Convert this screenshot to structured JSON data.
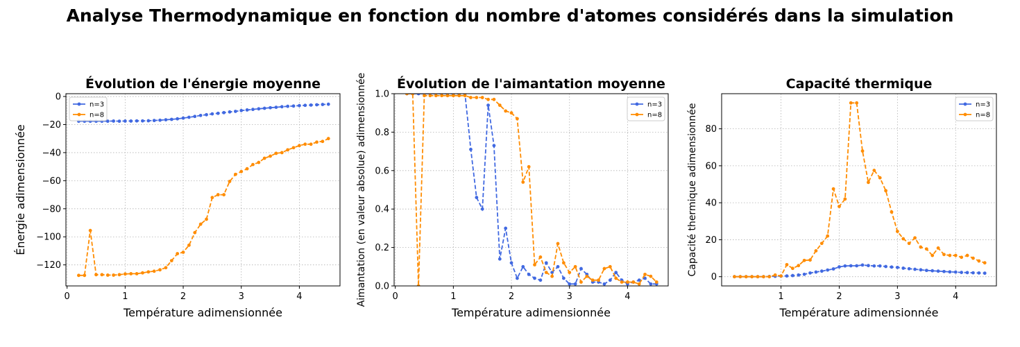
{
  "suptitle": "Analyse Thermodynamique en fonction du nombre d'atomes considérés dans la simulation",
  "colors": {
    "n3": "#4169e1",
    "n8": "#ff8c00"
  },
  "chart_data": [
    {
      "type": "line",
      "title": "Évolution de l'énergie moyenne",
      "xlabel": "Température adimensionnée",
      "ylabel": "Énergie adimensionnée",
      "xlim": [
        -0.02,
        4.7
      ],
      "ylim": [
        -135,
        2
      ],
      "xticks": [
        "0",
        "1",
        "2",
        "3",
        "4"
      ],
      "yticks": [
        "0",
        "−20",
        "−40",
        "−60",
        "−80",
        "−100",
        "−120"
      ],
      "legend": "upper-left",
      "grid": true,
      "x": [
        0.2,
        0.3,
        0.4,
        0.5,
        0.6,
        0.7,
        0.8,
        0.9,
        1.0,
        1.1,
        1.2,
        1.3,
        1.4,
        1.5,
        1.6,
        1.7,
        1.8,
        1.9,
        2.0,
        2.1,
        2.2,
        2.3,
        2.4,
        2.5,
        2.6,
        2.7,
        2.8,
        2.9,
        3.0,
        3.1,
        3.2,
        3.3,
        3.4,
        3.5,
        3.6,
        3.7,
        3.8,
        3.9,
        4.0,
        4.1,
        4.2,
        4.3,
        4.4,
        4.5
      ],
      "series": [
        {
          "name": "n=3",
          "values": [
            -17.6,
            -17.6,
            -17.6,
            -17.6,
            -17.6,
            -17.6,
            -17.5,
            -17.6,
            -17.5,
            -17.5,
            -17.4,
            -17.4,
            -17.3,
            -17.1,
            -16.9,
            -16.6,
            -16.3,
            -15.9,
            -15.4,
            -14.8,
            -14.2,
            -13.5,
            -13.0,
            -12.4,
            -12.0,
            -11.5,
            -11.0,
            -10.6,
            -10.0,
            -9.6,
            -9.2,
            -8.8,
            -8.4,
            -8.0,
            -7.7,
            -7.3,
            -7.0,
            -6.8,
            -6.5,
            -6.3,
            -6.1,
            -5.9,
            -5.7,
            -5.5
          ]
        },
        {
          "name": "n=8",
          "values": [
            -127.5,
            -127.5,
            -95.5,
            -127.0,
            -127.0,
            -127.3,
            -127.3,
            -127.0,
            -126.5,
            -126.3,
            -126.3,
            -125.7,
            -125.0,
            -124.5,
            -123.5,
            -122.0,
            -117.0,
            -112.0,
            -111.0,
            -106.0,
            -97.0,
            -91.0,
            -87.5,
            -72.0,
            -70.0,
            -70.0,
            -60.5,
            -55.5,
            -53.5,
            -51.5,
            -48.5,
            -47.0,
            -44.0,
            -42.5,
            -40.5,
            -40.0,
            -38.0,
            -36.5,
            -35.0,
            -34.0,
            -34.0,
            -32.5,
            -32.0,
            -30.0
          ]
        }
      ]
    },
    {
      "type": "line",
      "title": "Évolution de l'aimantation moyenne",
      "xlabel": "Température adimensionnée",
      "ylabel": "Aimantation (en valeur absolue) adimensionnée",
      "xlim": [
        -0.02,
        4.7
      ],
      "ylim": [
        0,
        1.0
      ],
      "xticks": [
        "0",
        "1",
        "2",
        "3",
        "4"
      ],
      "yticks": [
        "0.0",
        "0.2",
        "0.4",
        "0.6",
        "0.8",
        "1.0"
      ],
      "legend": "upper-right",
      "grid": true,
      "x": [
        0.2,
        0.3,
        0.4,
        0.5,
        0.6,
        0.7,
        0.8,
        0.9,
        1.0,
        1.1,
        1.2,
        1.3,
        1.4,
        1.5,
        1.6,
        1.7,
        1.8,
        1.9,
        2.0,
        2.1,
        2.2,
        2.3,
        2.4,
        2.5,
        2.6,
        2.7,
        2.8,
        2.9,
        3.0,
        3.1,
        3.2,
        3.3,
        3.4,
        3.5,
        3.6,
        3.7,
        3.8,
        3.9,
        4.0,
        4.1,
        4.2,
        4.3,
        4.4,
        4.5
      ],
      "series": [
        {
          "name": "n=3",
          "values": [
            1.0,
            1.0,
            1.0,
            1.0,
            1.0,
            1.0,
            1.0,
            1.0,
            1.0,
            1.0,
            1.0,
            0.71,
            0.46,
            0.4,
            0.94,
            0.73,
            0.14,
            0.3,
            0.12,
            0.04,
            0.1,
            0.06,
            0.04,
            0.03,
            0.12,
            0.07,
            0.1,
            0.04,
            0.01,
            0.01,
            0.09,
            0.06,
            0.02,
            0.02,
            0.01,
            0.03,
            0.07,
            0.03,
            0.01,
            0.02,
            0.03,
            0.04,
            0.01,
            0.01
          ]
        },
        {
          "name": "n=8",
          "values": [
            1.0,
            1.0,
            0.0,
            0.99,
            0.99,
            0.99,
            0.99,
            0.99,
            0.99,
            0.99,
            0.99,
            0.98,
            0.98,
            0.98,
            0.97,
            0.97,
            0.94,
            0.91,
            0.9,
            0.87,
            0.54,
            0.62,
            0.11,
            0.15,
            0.07,
            0.05,
            0.22,
            0.12,
            0.07,
            0.1,
            0.02,
            0.05,
            0.03,
            0.03,
            0.09,
            0.1,
            0.04,
            0.02,
            0.02,
            0.02,
            0.01,
            0.06,
            0.05,
            0.02
          ]
        }
      ]
    },
    {
      "type": "line",
      "title": "Capacité thermique",
      "xlabel": "Température adimensionnée",
      "ylabel": "Capacité thermique adimensionnée",
      "xlim": [
        -0.02,
        4.7
      ],
      "ylim": [
        -5,
        99
      ],
      "xticks": [
        "1",
        "2",
        "3",
        "4"
      ],
      "yticks": [
        "0",
        "20",
        "40",
        "60",
        "80"
      ],
      "legend": "upper-right",
      "grid": true,
      "x": [
        0.2,
        0.3,
        0.4,
        0.5,
        0.6,
        0.7,
        0.8,
        0.9,
        1.0,
        1.1,
        1.2,
        1.3,
        1.4,
        1.5,
        1.6,
        1.7,
        1.8,
        1.9,
        2.0,
        2.1,
        2.2,
        2.3,
        2.4,
        2.5,
        2.6,
        2.7,
        2.8,
        2.9,
        3.0,
        3.1,
        3.2,
        3.3,
        3.4,
        3.5,
        3.6,
        3.7,
        3.8,
        3.9,
        4.0,
        4.1,
        4.2,
        4.3,
        4.4,
        4.5
      ],
      "series": [
        {
          "name": "n=3",
          "values": [
            0.0,
            0.0,
            0.0,
            0.0,
            0.0,
            0.0,
            0.1,
            0.2,
            0.3,
            0.4,
            0.6,
            0.9,
            1.3,
            2.0,
            2.5,
            3.0,
            3.6,
            4.2,
            5.3,
            5.8,
            5.9,
            5.9,
            6.3,
            6.0,
            5.8,
            5.8,
            5.5,
            5.2,
            5.0,
            4.6,
            4.3,
            4.0,
            3.7,
            3.4,
            3.2,
            3.0,
            2.8,
            2.6,
            2.5,
            2.3,
            2.2,
            2.1,
            2.0,
            1.9
          ]
        },
        {
          "name": "n=8",
          "values": [
            0.0,
            0.0,
            0.0,
            0.0,
            0.0,
            0.0,
            0.0,
            0.9,
            0.4,
            6.5,
            4.5,
            6.0,
            8.8,
            9.0,
            14.0,
            18.0,
            22.0,
            47.5,
            38.0,
            42.0,
            94.0,
            94.0,
            68.0,
            51.0,
            57.5,
            53.5,
            46.5,
            35.0,
            24.5,
            20.5,
            18.0,
            21.0,
            16.0,
            15.0,
            11.5,
            15.5,
            12.0,
            11.5,
            11.5,
            10.5,
            11.5,
            10.0,
            8.5,
            7.5
          ]
        }
      ]
    }
  ]
}
